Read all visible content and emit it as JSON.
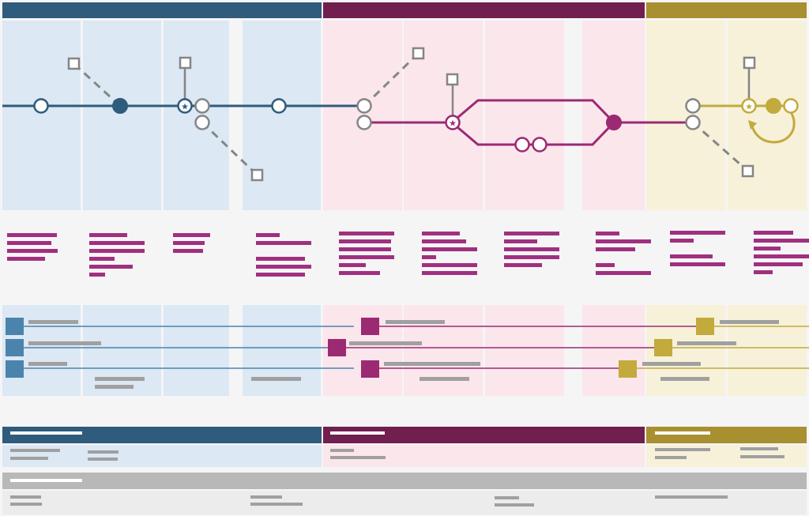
{
  "colors": {
    "background": "#f5f5f6",
    "blue": "#2f5b7d",
    "blue_light": "#dce8f3",
    "blue_square": "#4a84ad",
    "magenta": "#701f4f",
    "magenta_light": "#fbe6ec",
    "magenta_accent": "#9b2a73",
    "text_bar_magenta": "#a0307f",
    "gold": "#a89030",
    "gold_light": "#f7f1da",
    "gold_accent": "#c2aa3d",
    "gray": "#858585",
    "gray_light": "#a0a0a0",
    "gray_band": "#b8b8b8",
    "gray_band_light": "#ececec",
    "white": "#ffffff"
  },
  "diagram": {
    "phases": [
      "blue",
      "magenta",
      "gold"
    ],
    "legend_bands": [
      "blue",
      "magenta",
      "gold"
    ],
    "footer_band": "gray",
    "icons": [
      "star-icon",
      "loop-arrow-icon"
    ]
  }
}
